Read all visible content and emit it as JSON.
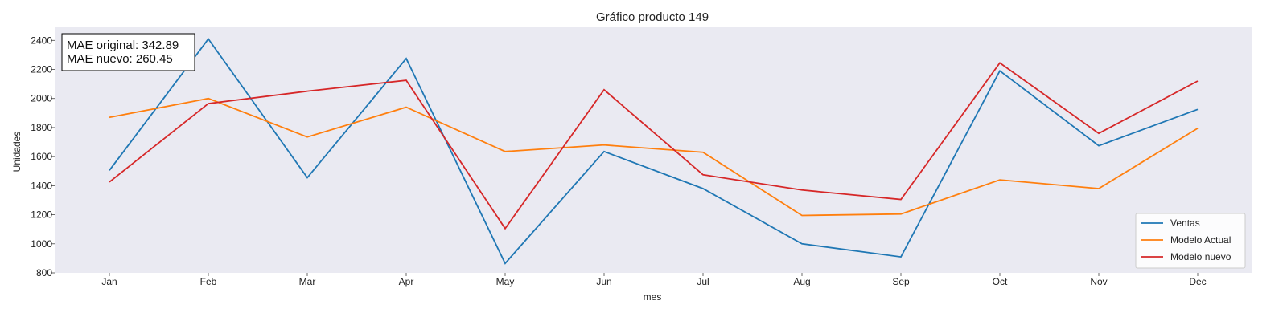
{
  "chart_data": {
    "type": "line",
    "title": "Gráfico producto 149",
    "xlabel": "mes",
    "ylabel": "Unidades",
    "categories": [
      "Jan",
      "Feb",
      "Mar",
      "Apr",
      "May",
      "Jun",
      "Jul",
      "Aug",
      "Sep",
      "Oct",
      "Nov",
      "Dec"
    ],
    "ylim": [
      800,
      2490
    ],
    "yticks": [
      800,
      1000,
      1200,
      1400,
      1600,
      1800,
      2000,
      2200,
      2400
    ],
    "grid": false,
    "background_color": "#eaeaf2",
    "legend_position": "lower-right",
    "series": [
      {
        "name": "Ventas",
        "color": "#1f77b4",
        "values": [
          1505,
          2410,
          1455,
          2275,
          865,
          1635,
          1380,
          1000,
          910,
          2190,
          1675,
          1925
        ]
      },
      {
        "name": "Modelo Actual",
        "color": "#ff7f0e",
        "values": [
          1870,
          2000,
          1735,
          1940,
          1635,
          1680,
          1630,
          1195,
          1205,
          1440,
          1380,
          1795
        ]
      },
      {
        "name": "Modelo nuevo",
        "color": "#d62728",
        "values": [
          1425,
          1965,
          2050,
          2125,
          1105,
          2060,
          1475,
          1370,
          1305,
          2245,
          1760,
          2120
        ]
      }
    ],
    "annotations": [
      "MAE original: 342.89",
      "MAE nuevo: 260.45"
    ]
  }
}
